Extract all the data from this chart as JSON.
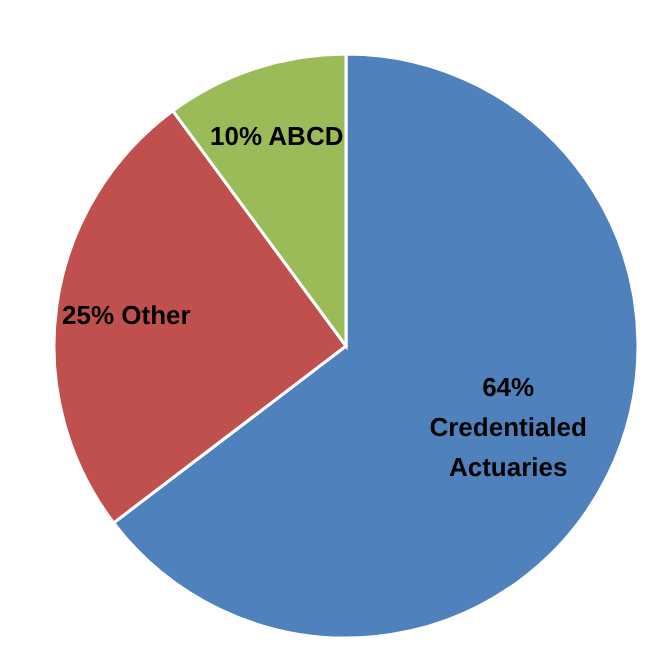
{
  "chart_data": {
    "type": "pie",
    "categories": [
      "Credentialed Actuaries",
      "Other",
      "ABCD"
    ],
    "values": [
      64,
      25,
      10
    ],
    "value_labels": [
      "64%",
      "25%",
      "10%"
    ],
    "colors": [
      "#4f81bd",
      "#c0504d",
      "#9bbb59"
    ]
  }
}
